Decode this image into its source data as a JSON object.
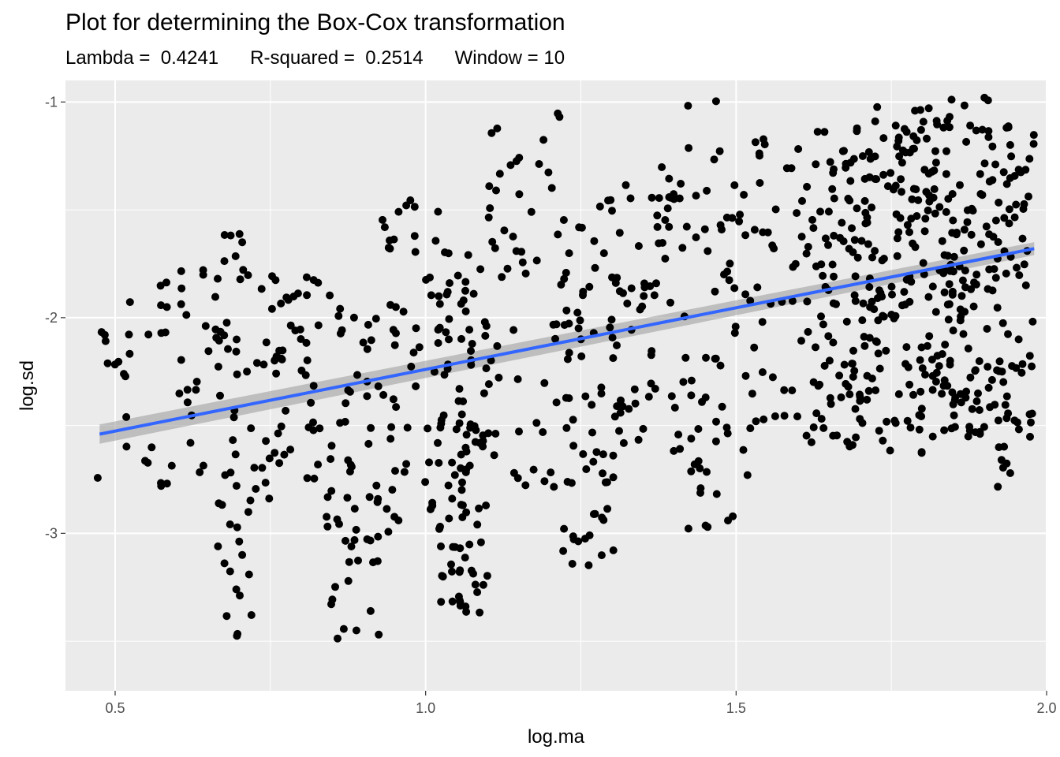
{
  "chart_data": {
    "type": "scatter",
    "title": "Plot for determining the Box-Cox transformation",
    "subtitle": "Lambda =  0.4241      R-squared =  0.2514      Window = 10",
    "xlabel": "log.ma",
    "ylabel": "log.sd",
    "xlim": [
      0.42,
      2.0
    ],
    "ylim": [
      -3.73,
      -0.9
    ],
    "x_ticks": [
      0.5,
      1.0,
      1.5,
      2.0
    ],
    "x_tick_labels": [
      "0.5",
      "1.0",
      "1.5",
      "2.0"
    ],
    "y_ticks": [
      -1,
      -2,
      -3
    ],
    "y_tick_labels": [
      "-1",
      "-2",
      "-3"
    ],
    "grid": true,
    "point_color": "#000000",
    "panel_color": "#EBEBEB",
    "fit_line": {
      "x": [
        0.475,
        1.98
      ],
      "y": [
        -2.54,
        -1.68
      ],
      "color": "#3366FF",
      "band_half_width": [
        0.045,
        0.03
      ],
      "band_color": "#999999"
    },
    "clusters": [
      {
        "x": [
          0.47,
          0.56
        ],
        "y": [
          -3.15,
          -1.88
        ],
        "n": 18
      },
      {
        "x": [
          0.57,
          0.66
        ],
        "y": [
          -2.82,
          -1.72
        ],
        "n": 28
      },
      {
        "x": [
          0.66,
          0.72
        ],
        "y": [
          -3.6,
          -1.58
        ],
        "n": 50
      },
      {
        "x": [
          0.72,
          0.83
        ],
        "y": [
          -2.9,
          -1.8
        ],
        "n": 55
      },
      {
        "x": [
          0.84,
          0.93
        ],
        "y": [
          -3.62,
          -1.88
        ],
        "n": 60
      },
      {
        "x": [
          0.93,
          1.02
        ],
        "y": [
          -3.02,
          -1.45
        ],
        "n": 50
      },
      {
        "x": [
          1.02,
          1.1
        ],
        "y": [
          -3.38,
          -1.66
        ],
        "n": 110
      },
      {
        "x": [
          1.1,
          1.22
        ],
        "y": [
          -2.88,
          -1.05
        ],
        "n": 55
      },
      {
        "x": [
          1.22,
          1.31
        ],
        "y": [
          -3.15,
          -1.4
        ],
        "n": 75
      },
      {
        "x": [
          1.31,
          1.42
        ],
        "y": [
          -2.62,
          -1.3
        ],
        "n": 60
      },
      {
        "x": [
          1.42,
          1.52
        ],
        "y": [
          -2.98,
          -0.96
        ],
        "n": 60
      },
      {
        "x": [
          1.52,
          1.62
        ],
        "y": [
          -2.58,
          -1.15
        ],
        "n": 45
      },
      {
        "x": [
          1.62,
          1.72
        ],
        "y": [
          -2.6,
          -1.12
        ],
        "n": 115
      },
      {
        "x": [
          1.72,
          1.82
        ],
        "y": [
          -2.65,
          -1.0
        ],
        "n": 125
      },
      {
        "x": [
          1.82,
          1.91
        ],
        "y": [
          -2.58,
          -0.98
        ],
        "n": 125
      },
      {
        "x": [
          1.91,
          1.98
        ],
        "y": [
          -2.8,
          -1.1
        ],
        "n": 80
      }
    ]
  }
}
